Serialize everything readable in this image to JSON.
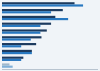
{
  "chart_data": {
    "type": "bar",
    "orientation": "horizontal",
    "categories": [
      null,
      null,
      null,
      null,
      null,
      null,
      null,
      null,
      null,
      null
    ],
    "series": [
      {
        "values": [
          68,
          57,
          50,
          46,
          42,
          37,
          32,
          28,
          20,
          7
        ],
        "colors": [
          "#1c3a5e",
          "#1c3a5e",
          "#1c3a5e",
          "#1c3a5e",
          "#1c3a5e",
          "#1c3a5e",
          "#1c3a5e",
          "#1c3a5e",
          "#1c3a5e",
          "#a0b8cc"
        ]
      },
      {
        "values": [
          76,
          46,
          62,
          36,
          36,
          27,
          18,
          28,
          18,
          10
        ],
        "colors": [
          "#2878c0",
          "#2878c0",
          "#2878c0",
          "#2878c0",
          "#2878c0",
          "#2878c0",
          "#2878c0",
          "#2878c0",
          "#2878c0",
          "#80b0d8"
        ]
      }
    ],
    "xlim": [
      0,
      90
    ],
    "tick_labels": false,
    "grid": false
  }
}
